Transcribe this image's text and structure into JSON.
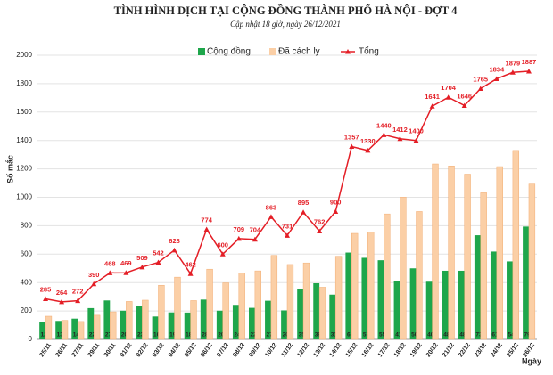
{
  "chart_data": {
    "type": "bar",
    "title": "TÌNH HÌNH DỊCH TẠI CỘNG ĐỒNG THÀNH PHỐ HÀ NỘI - ĐỢT 4",
    "subtitle": "Cập nhật 18 giờ, ngày 26/12/2021",
    "y_label": "Số mắc",
    "x_label": "Ngày",
    "categories": [
      "25/11",
      "26/11",
      "27/11",
      "29/11",
      "30/11",
      "01/12",
      "02/12",
      "03/12",
      "04/12",
      "05/12",
      "06/12",
      "07/12",
      "08/12",
      "09/12",
      "10/12",
      "11/12",
      "12/12",
      "13/12",
      "14/12",
      "15/12",
      "16/12",
      "17/12",
      "18/12",
      "19/12",
      "20/12",
      "21/12",
      "22/12",
      "23/12",
      "24/12",
      "25/12",
      "26/12"
    ],
    "series": [
      {
        "name": "Cộng đồng",
        "type": "bar",
        "color": "#1ea64b",
        "values": [
          122,
          130,
          146,
          220,
          274,
          202,
          233,
          161,
          190,
          189,
          280,
          202,
          243,
          222,
          272,
          204,
          357,
          395,
          315,
          611,
          574,
          557,
          411,
          500,
          406,
          483,
          483,
          733,
          618,
          549,
          794
        ]
      },
      {
        "name": "Đã cách ly",
        "type": "bar",
        "color": "#fbcfa6",
        "values": [
          163,
          134,
          126,
          170,
          194,
          267,
          276,
          381,
          438,
          273,
          494,
          398,
          466,
          482,
          591,
          527,
          538,
          367,
          585,
          746,
          756,
          883,
          1001,
          900,
          1235,
          1221,
          1163,
          1032,
          1216,
          1330,
          1093
        ]
      },
      {
        "name": "Tổng",
        "type": "line",
        "color": "#e41e26",
        "values": [
          285,
          264,
          272,
          390,
          468,
          469,
          509,
          542,
          628,
          462,
          774,
          600,
          709,
          704,
          863,
          731,
          895,
          762,
          900,
          1357,
          1330,
          1440,
          1412,
          1400,
          1641,
          1704,
          1646,
          1765,
          1834,
          1879,
          1887
        ]
      }
    ],
    "ylim": [
      0,
      2000
    ],
    "yticks": [
      0,
      200,
      400,
      600,
      800,
      1000,
      1200,
      1400,
      1600,
      1800,
      2000
    ],
    "grid": true
  }
}
